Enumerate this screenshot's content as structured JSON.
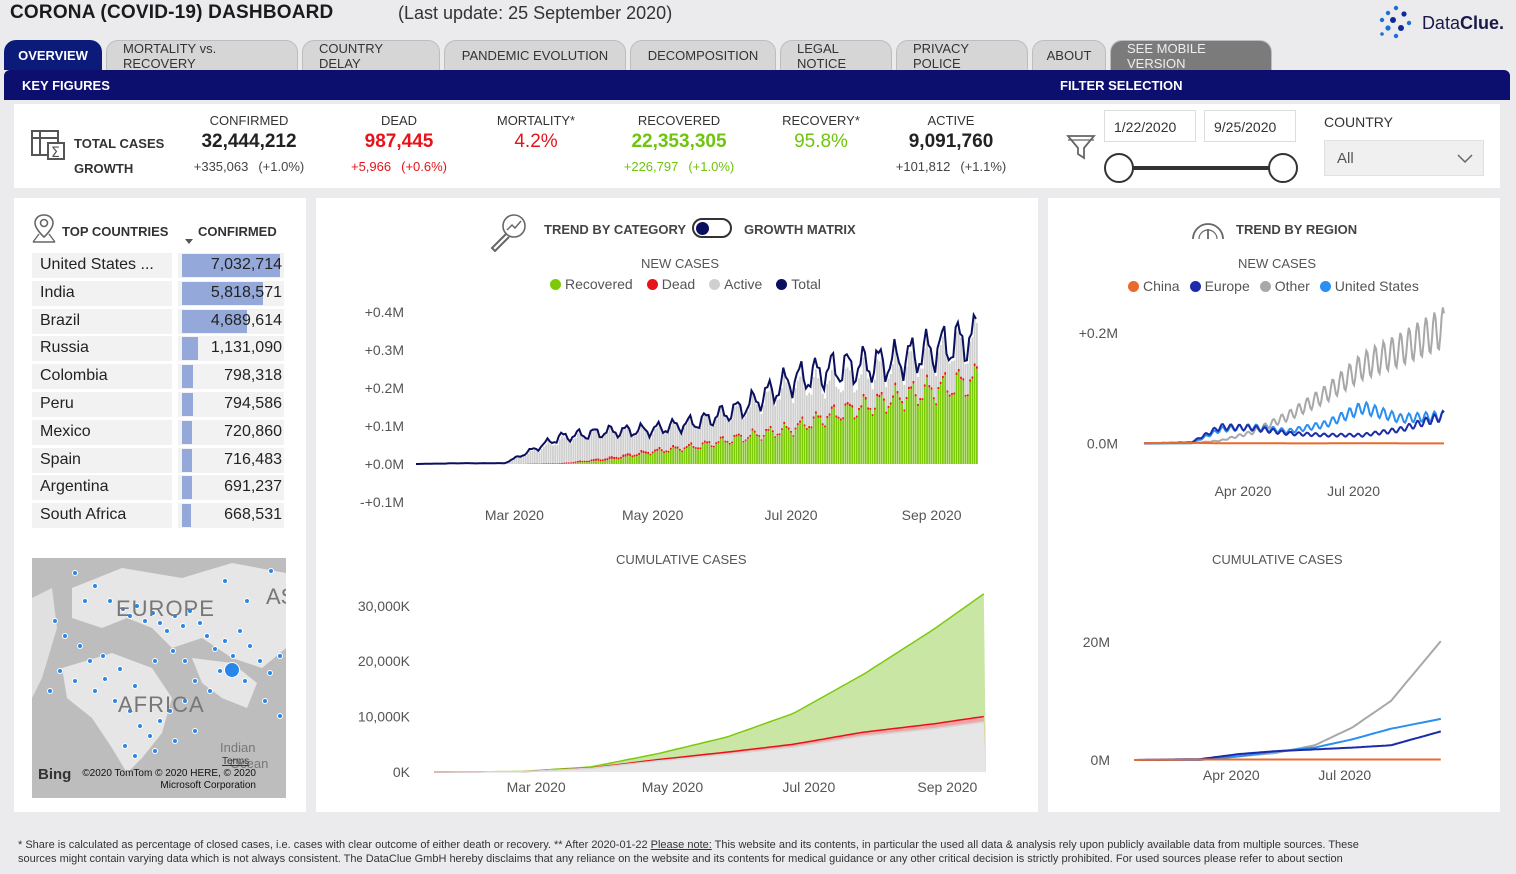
{
  "header": {
    "title": "CORONA (COVID-19) DASHBOARD",
    "last_update": "(Last update: 25 September 2020)",
    "logo": {
      "plain": "Data",
      "bold": "Clue",
      "suffix": "."
    }
  },
  "tabs": [
    {
      "label": "OVERVIEW"
    },
    {
      "label": "MORTALITY vs. RECOVERY"
    },
    {
      "label": "COUNTRY DELAY"
    },
    {
      "label": "PANDEMIC EVOLUTION"
    },
    {
      "label": "DECOMPOSITION"
    },
    {
      "label": "LEGAL NOTICE"
    },
    {
      "label": "PRIVACY POLICE"
    },
    {
      "label": "ABOUT"
    },
    {
      "label": "SEE MOBILE VERSION"
    }
  ],
  "key_figures": {
    "title": "KEY FIGURES",
    "row_total": "TOTAL CASES",
    "row_growth": "GROWTH",
    "confirmed": {
      "label": "CONFIRMED",
      "value": "32,444,212",
      "growth": "+335,063",
      "pct": "(+1.0%)",
      "color": "#222222"
    },
    "dead": {
      "label": "DEAD",
      "value": "987,445",
      "growth": "+5,966",
      "pct": "(+0.6%)",
      "color": "#e8131a"
    },
    "mortality": {
      "label": "MORTALITY*",
      "value": "4.2%",
      "color": "#e8131a"
    },
    "recovered": {
      "label": "RECOVERED",
      "value": "22,353,305",
      "growth": "+226,797",
      "pct": "(+1.0%)",
      "color": "#6fc40c"
    },
    "recovery": {
      "label": "RECOVERY*",
      "value": "95.8%",
      "color": "#6fc40c"
    },
    "active": {
      "label": "ACTIVE",
      "value": "9,091,760",
      "growth": "+101,812",
      "pct": "(+1.1%)",
      "color": "#222222"
    }
  },
  "filter": {
    "title": "FILTER SELECTION",
    "date_from": "1/22/2020",
    "date_to": "9/25/2020",
    "country_label": "COUNTRY",
    "country_value": "All"
  },
  "top_countries": {
    "title": "TOP COUNTRIES",
    "col": "CONFIRMED",
    "rows": [
      {
        "name": "United States ...",
        "value": "7,032,714",
        "share": 1.0
      },
      {
        "name": "India",
        "value": "5,818,571",
        "share": 0.827
      },
      {
        "name": "Brazil",
        "value": "4,689,614",
        "share": 0.667
      },
      {
        "name": "Russia",
        "value": "1,131,090",
        "share": 0.161
      },
      {
        "name": "Colombia",
        "value": "798,318",
        "share": 0.114
      },
      {
        "name": "Peru",
        "value": "794,586",
        "share": 0.113
      },
      {
        "name": "Mexico",
        "value": "720,860",
        "share": 0.103
      },
      {
        "name": "Spain",
        "value": "716,483",
        "share": 0.102
      },
      {
        "name": "Argentina",
        "value": "691,237",
        "share": 0.098
      },
      {
        "name": "South Africa",
        "value": "668,531",
        "share": 0.095
      }
    ]
  },
  "map": {
    "labels": [
      "EUROPE",
      "AFRICA",
      "AS",
      "Indian",
      "Ocean"
    ],
    "attribution": [
      "©2020 TomTom © 2020 HERE, © 2020",
      "Microsoft Corporation"
    ],
    "terms": "Terms",
    "brand": "Bing"
  },
  "trend_category": {
    "title": "TREND BY CATEGORY",
    "toggle_label": "GROWTH MATRIX",
    "new_title": "NEW CASES",
    "cum_title": "CUMULATIVE CASES",
    "colors": {
      "recovered": "#7cc90a",
      "dead": "#e8131a",
      "active": "#cfcfcf",
      "total": "#0a0f5e"
    }
  },
  "trend_region": {
    "title": "TREND BY REGION",
    "new_title": "NEW CASES",
    "cum_title": "CUMULATIVE CASES",
    "colors": {
      "china": "#e86a2e",
      "europe": "#1c2ca8",
      "other": "#a8a8a8",
      "us": "#2a8ff0"
    }
  },
  "chart_data": [
    {
      "type": "bar",
      "title": "NEW CASES",
      "x_ticks": [
        "Mar 2020",
        "May 2020",
        "Jul 2020",
        "Sep 2020"
      ],
      "y_ticks": [
        "+0.4M",
        "+0.3M",
        "+0.2M",
        "+0.1M",
        "+0.0M",
        "-+0.1M"
      ],
      "ylim": [
        -100000,
        400000
      ],
      "series": [
        {
          "name": "Recovered",
          "values": [
            0,
            0,
            0,
            0,
            10000,
            30000,
            45000,
            70000,
            90000,
            130000,
            170000,
            220000
          ]
        },
        {
          "name": "Dead",
          "values": [
            0,
            0,
            0,
            2000,
            6000,
            5500,
            5000,
            4500,
            5000,
            6000,
            6000,
            5900
          ]
        },
        {
          "name": "Active",
          "values": [
            0,
            0,
            2000,
            60000,
            70000,
            50000,
            60000,
            70000,
            110000,
            80000,
            80000,
            100000
          ]
        },
        {
          "name": "Total",
          "values": [
            0,
            2000,
            2000,
            70000,
            85000,
            90000,
            110000,
            150000,
            220000,
            250000,
            270000,
            335000
          ]
        }
      ],
      "x": [
        "2020-01-22",
        "2020-02-10",
        "2020-03-01",
        "2020-03-25",
        "2020-04-15",
        "2020-05-05",
        "2020-05-25",
        "2020-06-15",
        "2020-07-05",
        "2020-07-25",
        "2020-08-20",
        "2020-09-25"
      ]
    },
    {
      "type": "area",
      "title": "CUMULATIVE CASES",
      "x_ticks": [
        "Mar 2020",
        "May 2020",
        "Jul 2020",
        "Sep 2020"
      ],
      "y_ticks": [
        "30,000K",
        "20,000K",
        "10,000K",
        "0K"
      ],
      "ylim": [
        0,
        32500000
      ],
      "x": [
        "2020-01-22",
        "2020-03-01",
        "2020-04-01",
        "2020-05-01",
        "2020-06-01",
        "2020-07-01",
        "2020-08-01",
        "2020-09-01",
        "2020-09-25"
      ],
      "series": [
        {
          "name": "Confirmed",
          "values": [
            500,
            90000,
            900000,
            3300000,
            6300000,
            10600000,
            17600000,
            25600000,
            32444212
          ]
        },
        {
          "name": "Dead",
          "values": [
            20,
            3000,
            50000,
            240000,
            375000,
            520000,
            690000,
            860000,
            987445
          ]
        },
        {
          "name": "Active",
          "values": [
            480,
            45000,
            650000,
            2000000,
            3200000,
            4500000,
            6500000,
            7800000,
            9091760
          ]
        }
      ]
    },
    {
      "type": "line",
      "title": "NEW CASES",
      "x_ticks": [
        "Apr 2020",
        "Jul 2020"
      ],
      "y_ticks": [
        "+0.2M",
        "0.0M"
      ],
      "ylim": [
        -70000,
        220000
      ],
      "x": [
        "2020-01-22",
        "2020-03-01",
        "2020-03-25",
        "2020-04-20",
        "2020-05-20",
        "2020-06-20",
        "2020-07-20",
        "2020-08-20",
        "2020-09-25"
      ],
      "series": [
        {
          "name": "China",
          "values": [
            500,
            1000,
            200,
            100,
            50,
            50,
            100,
            50,
            30
          ]
        },
        {
          "name": "Europe",
          "values": [
            0,
            2000,
            30000,
            28000,
            18000,
            15000,
            15000,
            25000,
            50000
          ]
        },
        {
          "name": "Other",
          "values": [
            0,
            500,
            5000,
            20000,
            50000,
            90000,
            140000,
            170000,
            210000
          ]
        },
        {
          "name": "United States",
          "values": [
            0,
            100,
            25000,
            30000,
            22000,
            35000,
            65000,
            45000,
            50000
          ]
        }
      ]
    },
    {
      "type": "line",
      "title": "CUMULATIVE CASES",
      "x_ticks": [
        "Apr 2020",
        "Jul 2020"
      ],
      "y_ticks": [
        "20M",
        "0M"
      ],
      "ylim": [
        0,
        20000000
      ],
      "x": [
        "2020-01-22",
        "2020-03-15",
        "2020-04-15",
        "2020-05-15",
        "2020-06-15",
        "2020-07-15",
        "2020-08-15",
        "2020-09-25"
      ],
      "series": [
        {
          "name": "China",
          "values": [
            500,
            81000,
            83000,
            84000,
            84500,
            85000,
            85500,
            85000
          ]
        },
        {
          "name": "Europe",
          "values": [
            0,
            150000,
            1000000,
            1500000,
            1800000,
            2100000,
            2500000,
            4900000
          ]
        },
        {
          "name": "Other",
          "values": [
            0,
            50000,
            600000,
            1200000,
            2500000,
            5500000,
            10000000,
            20400000
          ]
        },
        {
          "name": "United States",
          "values": [
            0,
            3500,
            640000,
            1440000,
            2110000,
            3500000,
            5300000,
            7000000
          ]
        }
      ]
    }
  ],
  "footer": {
    "line1a": "* Share is calculated as percentage of closed cases, i.e. cases with clear outcome of either death or recovery.  ** After 2020-01-22 ",
    "note": "Please note:",
    "line1b": " This website and its contents, in particular the used all data & analysis rely upon publicly available data from multiple sources. These",
    "line2": "sources might contain varying data which is not always consistent. The DataClue GmbH hereby disclaims that any reliance on the website and its contents for medical guidance or any other critical decision is strictly prohibited. For used sources please refer to about section"
  }
}
